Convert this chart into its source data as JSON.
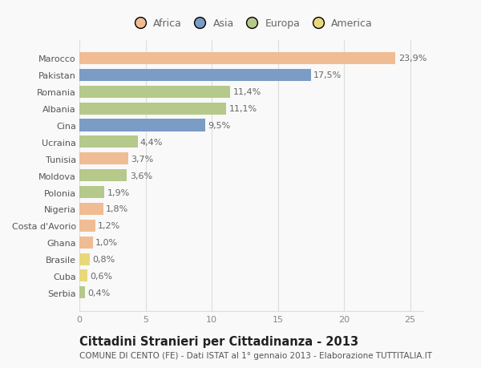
{
  "categories": [
    "Serbia",
    "Cuba",
    "Brasile",
    "Ghana",
    "Costa d'Avorio",
    "Nigeria",
    "Polonia",
    "Moldova",
    "Tunisia",
    "Ucraina",
    "Cina",
    "Albania",
    "Romania",
    "Pakistan",
    "Marocco"
  ],
  "values": [
    0.4,
    0.6,
    0.8,
    1.0,
    1.2,
    1.8,
    1.9,
    3.6,
    3.7,
    4.4,
    9.5,
    11.1,
    11.4,
    17.5,
    23.9
  ],
  "labels": [
    "0,4%",
    "0,6%",
    "0,8%",
    "1,0%",
    "1,2%",
    "1,8%",
    "1,9%",
    "3,6%",
    "3,7%",
    "4,4%",
    "9,5%",
    "11,1%",
    "11,4%",
    "17,5%",
    "23,9%"
  ],
  "colors": [
    "#b5c98a",
    "#e8d87a",
    "#e8d87a",
    "#f0bc94",
    "#f0bc94",
    "#f0bc94",
    "#b5c98a",
    "#b5c98a",
    "#f0bc94",
    "#b5c98a",
    "#7a9cc5",
    "#b5c98a",
    "#b5c98a",
    "#7a9cc5",
    "#f0bc94"
  ],
  "legend_labels": [
    "Africa",
    "Asia",
    "Europa",
    "America"
  ],
  "legend_colors": [
    "#f0bc94",
    "#7a9cc5",
    "#b5c98a",
    "#e8d87a"
  ],
  "title": "Cittadini Stranieri per Cittadinanza - 2013",
  "subtitle": "COMUNE DI CENTO (FE) - Dati ISTAT al 1° gennaio 2013 - Elaborazione TUTTITALIA.IT",
  "xlim": [
    0,
    26
  ],
  "xticks": [
    0,
    5,
    10,
    15,
    20,
    25
  ],
  "bg_color": "#f9f9f9",
  "grid_color": "#dddddd",
  "bar_height": 0.72,
  "label_fontsize": 8,
  "title_fontsize": 10.5,
  "subtitle_fontsize": 7.5,
  "tick_fontsize": 8,
  "ytick_fontsize": 8
}
